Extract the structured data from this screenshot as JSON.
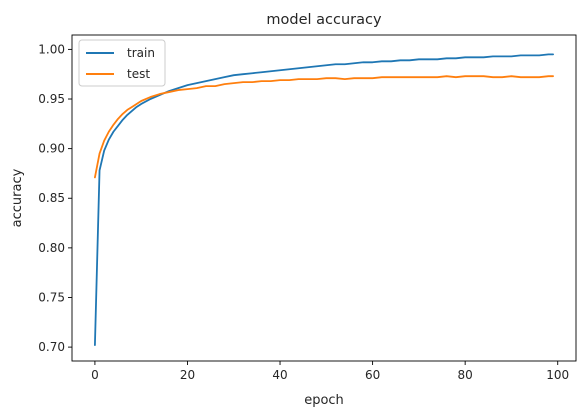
{
  "chart_data": {
    "type": "line",
    "title": "model accuracy",
    "xlabel": "epoch",
    "ylabel": "accuracy",
    "xlim": [
      -4.95,
      103.95
    ],
    "ylim": [
      0.686,
      1.0145
    ],
    "xticks": [
      0,
      20,
      40,
      60,
      80,
      100
    ],
    "yticks": [
      0.7,
      0.75,
      0.8,
      0.85,
      0.9,
      0.95,
      1.0
    ],
    "legend_position": "top-left",
    "grid": false,
    "series": [
      {
        "name": "train",
        "color": "#1f77b4",
        "x": [
          0,
          1,
          2,
          3,
          4,
          5,
          6,
          7,
          8,
          9,
          10,
          12,
          14,
          16,
          18,
          20,
          22,
          24,
          26,
          28,
          30,
          32,
          34,
          36,
          38,
          40,
          42,
          44,
          46,
          48,
          50,
          52,
          54,
          56,
          58,
          60,
          62,
          64,
          66,
          68,
          70,
          72,
          74,
          76,
          78,
          80,
          82,
          84,
          86,
          88,
          90,
          92,
          94,
          96,
          98,
          99
        ],
        "y": [
          0.702,
          0.878,
          0.898,
          0.909,
          0.917,
          0.923,
          0.929,
          0.934,
          0.938,
          0.942,
          0.945,
          0.95,
          0.954,
          0.958,
          0.961,
          0.964,
          0.966,
          0.968,
          0.97,
          0.972,
          0.974,
          0.975,
          0.976,
          0.977,
          0.978,
          0.979,
          0.98,
          0.981,
          0.982,
          0.983,
          0.984,
          0.985,
          0.985,
          0.986,
          0.987,
          0.987,
          0.988,
          0.988,
          0.989,
          0.989,
          0.99,
          0.99,
          0.99,
          0.991,
          0.991,
          0.992,
          0.992,
          0.992,
          0.993,
          0.993,
          0.993,
          0.994,
          0.994,
          0.994,
          0.995,
          0.995
        ]
      },
      {
        "name": "test",
        "color": "#ff7f0e",
        "x": [
          0,
          1,
          2,
          3,
          4,
          5,
          6,
          7,
          8,
          9,
          10,
          12,
          14,
          16,
          18,
          20,
          22,
          24,
          26,
          28,
          30,
          32,
          34,
          36,
          38,
          40,
          42,
          44,
          46,
          48,
          50,
          52,
          54,
          56,
          58,
          60,
          62,
          64,
          66,
          68,
          70,
          72,
          74,
          76,
          78,
          80,
          82,
          84,
          86,
          88,
          90,
          92,
          94,
          96,
          98,
          99
        ],
        "y": [
          0.871,
          0.895,
          0.908,
          0.917,
          0.924,
          0.93,
          0.935,
          0.939,
          0.942,
          0.945,
          0.948,
          0.952,
          0.955,
          0.957,
          0.959,
          0.96,
          0.961,
          0.963,
          0.963,
          0.965,
          0.966,
          0.967,
          0.967,
          0.968,
          0.968,
          0.969,
          0.969,
          0.97,
          0.97,
          0.97,
          0.971,
          0.971,
          0.97,
          0.971,
          0.971,
          0.971,
          0.972,
          0.972,
          0.972,
          0.972,
          0.972,
          0.972,
          0.972,
          0.973,
          0.972,
          0.973,
          0.973,
          0.973,
          0.972,
          0.972,
          0.973,
          0.972,
          0.972,
          0.972,
          0.973,
          0.973
        ]
      }
    ]
  }
}
